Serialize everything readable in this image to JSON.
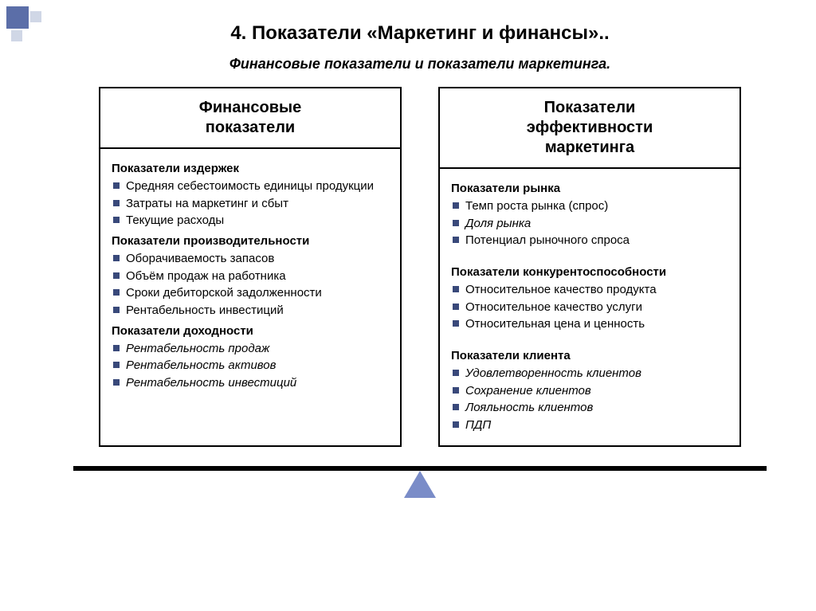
{
  "colors": {
    "bullet": "#39497a",
    "deco_primary": "#5b6ea8",
    "deco_secondary": "#d0d7e6",
    "triangle": "#7a8cc8",
    "border": "#000000",
    "bg": "#ffffff"
  },
  "title": "4. Показатели «Маркетинг и финансы»..",
  "subtitle": "Финансовые показатели и показатели маркетинга.",
  "boxes": [
    {
      "header": "Финансовые\nпоказатели",
      "groups": [
        {
          "title": "Показатели издержек",
          "spaced": false,
          "items": [
            {
              "text": "Средняя себестоимость единицы продукции",
              "italic": false
            },
            {
              "text": "Затраты на маркетинг и сбыт",
              "italic": false
            },
            {
              "text": "Текущие расходы",
              "italic": false
            }
          ]
        },
        {
          "title": "Показатели производительности",
          "spaced": false,
          "items": [
            {
              "text": "Оборачиваемость запасов",
              "italic": false
            },
            {
              "text": "Объём продаж на работника",
              "italic": false
            },
            {
              "text": "Сроки дебиторской задолженности",
              "italic": false
            },
            {
              "text": "Рентабельность инвестиций",
              "italic": false
            }
          ]
        },
        {
          "title": "Показатели доходности",
          "spaced": false,
          "items": [
            {
              "text": "Рентабельность продаж",
              "italic": true
            },
            {
              "text": "Рентабельность активов",
              "italic": true
            },
            {
              "text": "Рентабельность инвестиций",
              "italic": true
            }
          ]
        }
      ]
    },
    {
      "header": "Показатели\nэффективности\nмаркетинга",
      "groups": [
        {
          "title": "Показатели рынка",
          "spaced": false,
          "items": [
            {
              "text": "Темп роста рынка (спрос)",
              "italic": false
            },
            {
              "text": "Доля рынка",
              "italic": true
            },
            {
              "text": "Потенциал рыночного спроса",
              "italic": false
            }
          ]
        },
        {
          "title": "Показатели конкурентоспособности",
          "spaced": true,
          "items": [
            {
              "text": "Относительное качество продукта",
              "italic": false
            },
            {
              "text": "Относительное качество услуги",
              "italic": false
            },
            {
              "text": "Относительная цена и ценность",
              "italic": false
            }
          ]
        },
        {
          "title": "Показатели клиента",
          "spaced": true,
          "items": [
            {
              "text": "Удовлетворенность клиентов",
              "italic": true
            },
            {
              "text": "Сохранение клиентов",
              "italic": true
            },
            {
              "text": "Лояльность клиентов",
              "italic": true
            },
            {
              "text": "ПДП",
              "italic": true
            }
          ]
        }
      ]
    }
  ]
}
